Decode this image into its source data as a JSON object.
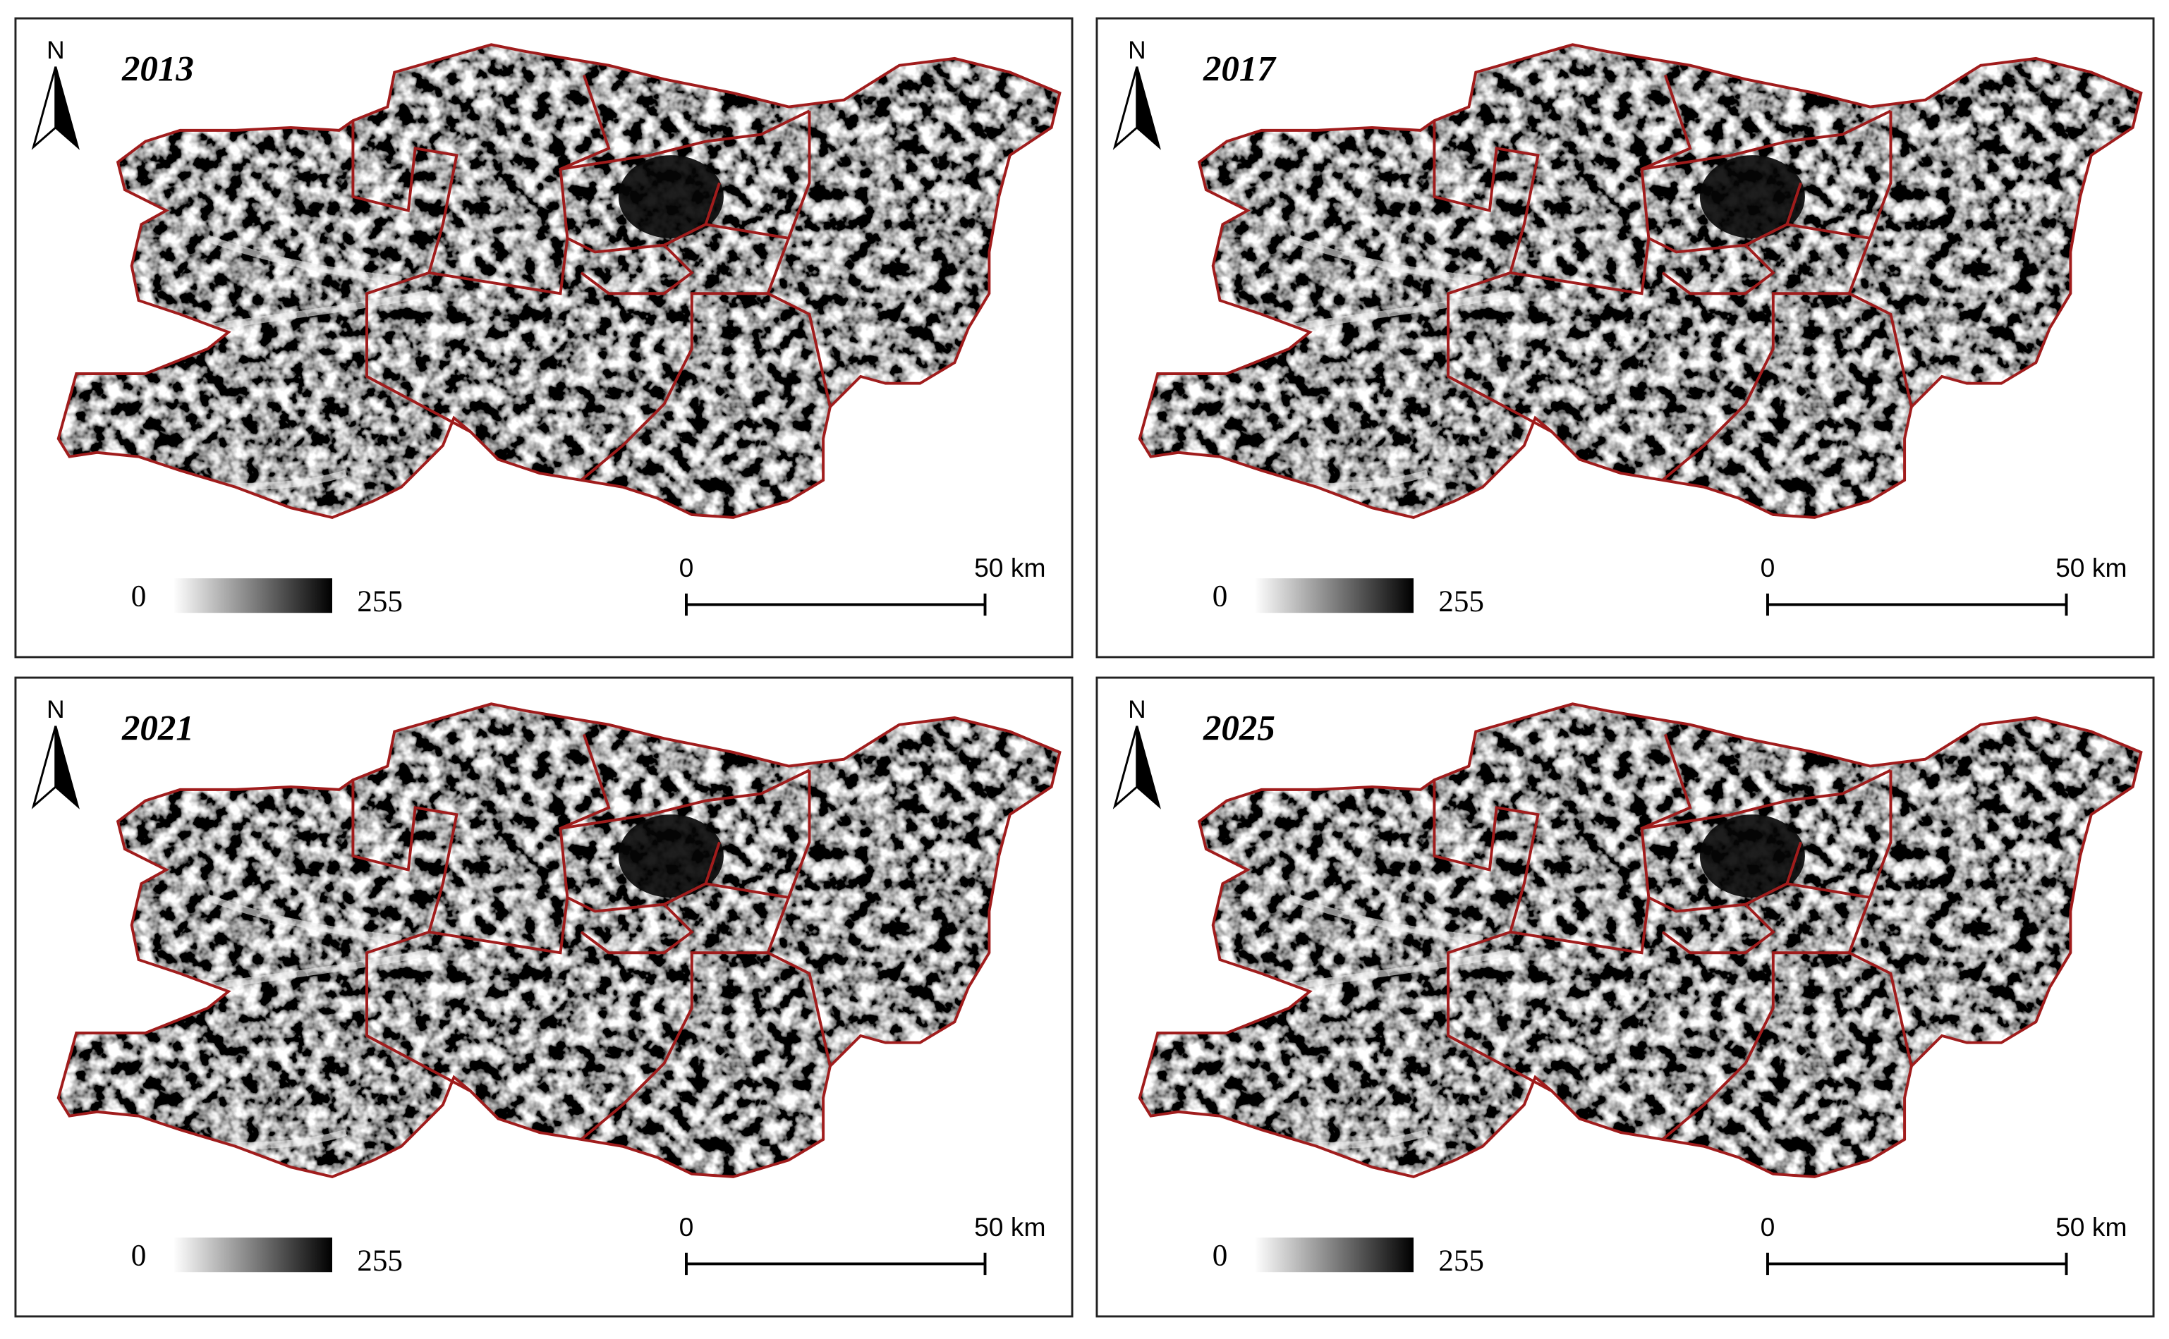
{
  "panels": [
    {
      "north": "N",
      "year": "2013",
      "legend": {
        "min": 0,
        "max": 255
      },
      "scale_bar": {
        "start": 0,
        "end": "50 km"
      }
    },
    {
      "north": "N",
      "year": "2017",
      "legend": {
        "min": 0,
        "max": 255
      },
      "scale_bar": {
        "start": 0,
        "end": "50 km"
      }
    },
    {
      "north": "N",
      "year": "2021",
      "legend": {
        "min": 0,
        "max": 255
      },
      "scale_bar": {
        "start": 0,
        "end": "50 km"
      }
    },
    {
      "north": "N",
      "year": "2025",
      "legend": {
        "min": 0,
        "max": 255
      },
      "scale_bar": {
        "start": 0,
        "end": "50 km"
      }
    }
  ]
}
